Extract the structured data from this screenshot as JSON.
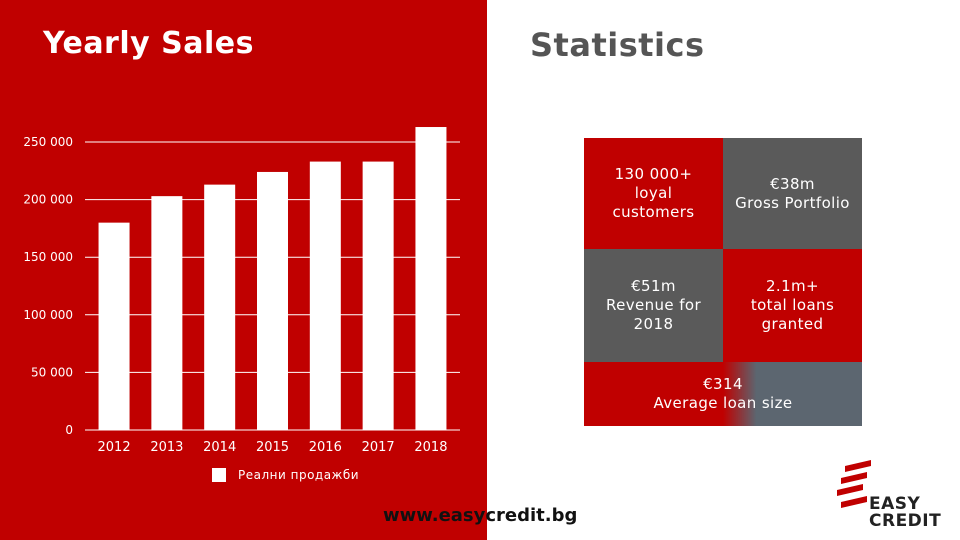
{
  "header": {
    "left_title": "Yearly Sales",
    "right_title": "Statistics"
  },
  "chart_data": {
    "type": "bar",
    "categories": [
      "2012",
      "2013",
      "2014",
      "2015",
      "2016",
      "2017",
      "2018"
    ],
    "series": [
      {
        "name": "Реални продажби",
        "values": [
          180000,
          203000,
          213000,
          224000,
          233000,
          233000,
          263000
        ]
      }
    ],
    "ylim": [
      0,
      250000
    ],
    "yticks": [
      0,
      50000,
      100000,
      150000,
      200000,
      250000
    ],
    "ytick_labels": [
      "0",
      "50 000",
      "100 000",
      "150 000",
      "200 000",
      "250 000"
    ],
    "grid": true,
    "legend_position": "bottom",
    "colors": {
      "bar": "#ffffff",
      "background": "#c00000",
      "grid": "#ffffff"
    }
  },
  "stats": [
    {
      "text": "130 000+\nloyal\ncustomers"
    },
    {
      "text": "€38m\nGross Portfolio"
    },
    {
      "text": "€51m\nRevenue for\n2018"
    },
    {
      "text": "2.1m+\ntotal loans\ngranted"
    },
    {
      "text": "€314\nAverage loan size"
    }
  ],
  "footer": {
    "url": "www.easycredit.bg"
  },
  "logo": {
    "line1": "EASY",
    "line2": "CREDIT",
    "icon": "easycredit-logo-icon"
  },
  "colors": {
    "brand_red": "#c00000",
    "grey_dark": "#5a5a5a",
    "grey_blue": "#5c6670"
  }
}
